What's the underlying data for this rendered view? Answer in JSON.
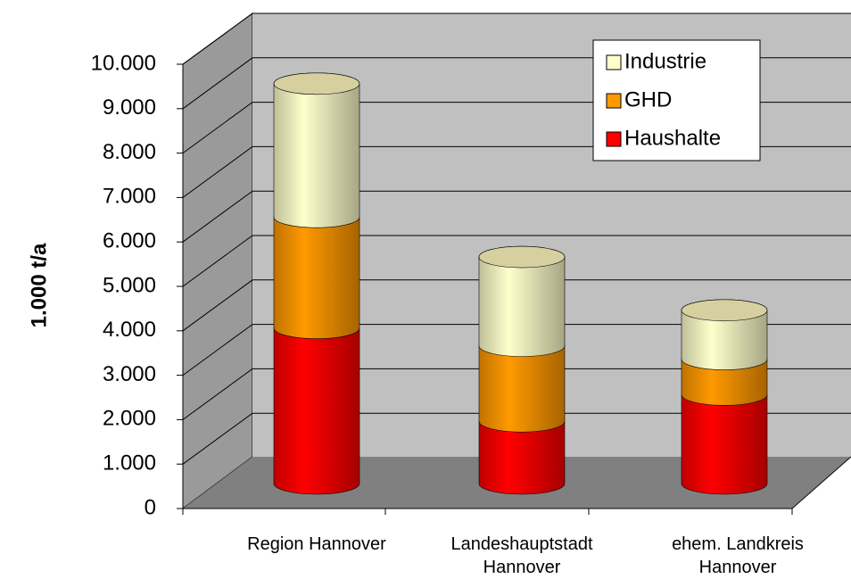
{
  "chart_data": {
    "type": "bar3d_stacked_cylinder",
    "y_label": "1.000 t/a",
    "categories": [
      "Region Hannover",
      "Landeshauptstadt Hannover",
      "ehem. Landkreis Hannover"
    ],
    "series": [
      {
        "name": "Haushalte",
        "color": "#ff0000",
        "values": [
          3500,
          1400,
          2000
        ]
      },
      {
        "name": "GHD",
        "color": "#ff9900",
        "values": [
          2500,
          1700,
          800
        ]
      },
      {
        "name": "Industrie",
        "color": "#ffffcc",
        "values": [
          3000,
          2000,
          1100
        ]
      }
    ],
    "ylim": [
      0,
      10000
    ],
    "yticks": [
      0,
      {
        "value": 1000,
        "label": "1.000"
      },
      {
        "value": 2000,
        "label": "2.000"
      },
      {
        "value": 3000,
        "label": "3.000"
      },
      {
        "value": 4000,
        "label": "4.000"
      },
      {
        "value": 5000,
        "label": "5.000"
      },
      {
        "value": 6000,
        "label": "6.000"
      },
      {
        "value": 7000,
        "label": "7.000"
      },
      {
        "value": 8000,
        "label": "8.000"
      },
      {
        "value": 9000,
        "label": "9.000"
      },
      {
        "value": 10000,
        "label": "10.000"
      }
    ],
    "grid": true,
    "legend": "upper right"
  }
}
